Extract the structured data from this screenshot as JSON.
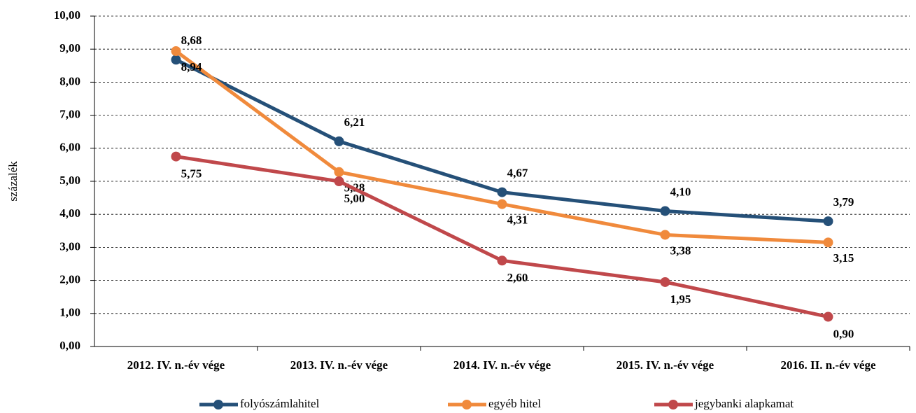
{
  "chart_data": {
    "type": "line",
    "y_label": "százalék",
    "categories": [
      "2012. IV. n.-év vége",
      "2013. IV. n.-év vége",
      "2014. IV. n.-év vége",
      "2015. IV. n.-év vége",
      "2016. II. n.-év vége"
    ],
    "series": [
      {
        "name": "folyószámlahitel",
        "color": "#255078",
        "values": [
          8.68,
          6.21,
          4.67,
          4.1,
          3.79
        ],
        "value_labels": [
          "8,68",
          "6,21",
          "4,67",
          "4,10",
          "3,79"
        ]
      },
      {
        "name": "egyéb hitel",
        "color": "#f08a3c",
        "values": [
          8.94,
          5.28,
          4.31,
          3.38,
          3.15
        ],
        "value_labels": [
          "8,94",
          "5,28",
          "4,31",
          "3,38",
          "3,15"
        ]
      },
      {
        "name": "jegybanki alapkamat",
        "color": "#c0484b",
        "values": [
          5.75,
          5.0,
          2.6,
          1.95,
          0.9
        ],
        "value_labels": [
          "5,75",
          "5,00",
          "2,60",
          "1,95",
          "0,90"
        ]
      }
    ],
    "ylim": [
      0,
      10
    ],
    "yticks": [
      {
        "value": 0,
        "label": "0,00"
      },
      {
        "value": 1,
        "label": "1,00"
      },
      {
        "value": 2,
        "label": "2,00"
      },
      {
        "value": 3,
        "label": "3,00"
      },
      {
        "value": 4,
        "label": "4,00"
      },
      {
        "value": 5,
        "label": "5,00"
      },
      {
        "value": 6,
        "label": "6,00"
      },
      {
        "value": 7,
        "label": "7,00"
      },
      {
        "value": 8,
        "label": "8,00"
      },
      {
        "value": 9,
        "label": "9,00"
      },
      {
        "value": 10,
        "label": "10,00"
      }
    ],
    "grid": true,
    "legend": "bottom"
  }
}
